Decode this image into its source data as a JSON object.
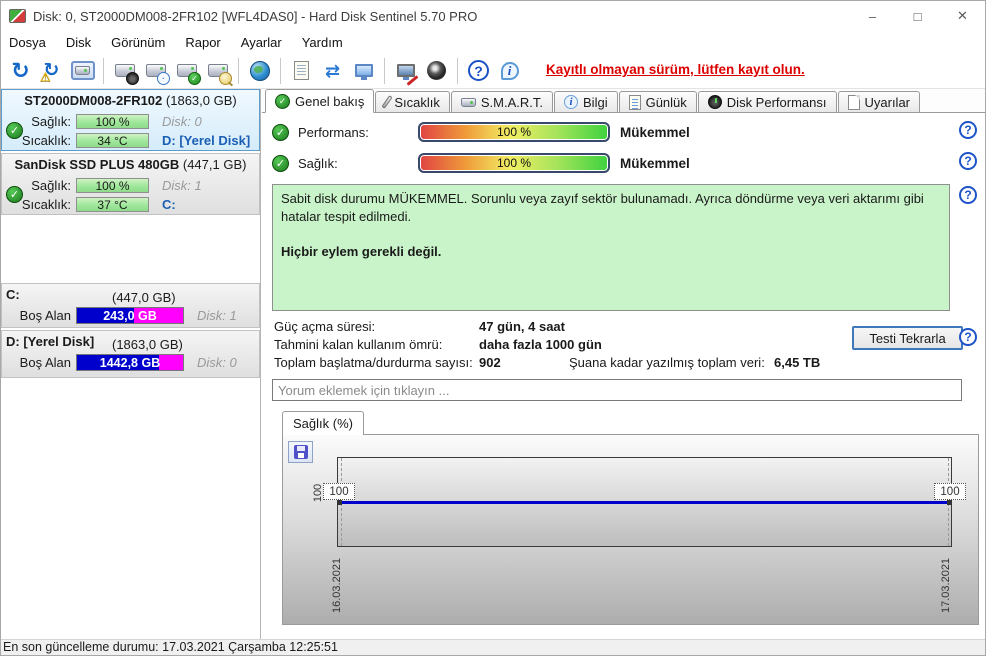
{
  "window": {
    "title": "Disk: 0, ST2000DM008-2FR102 [WFL4DAS0]  -  Hard Disk Sentinel 5.70 PRO",
    "controls": {
      "minimize": "–",
      "maximize": "□",
      "close": "✕"
    }
  },
  "menu": {
    "items": [
      "Dosya",
      "Disk",
      "Görünüm",
      "Rapor",
      "Ayarlar",
      "Yardım"
    ]
  },
  "toolbar": {
    "registration_notice": "Kayıtlı olmayan sürüm, lütfen kayıt olun.",
    "icons": [
      "refresh-icon",
      "refresh-warning-icon",
      "disk-box-icon",
      "disk-gauge-icon",
      "disk-clock-icon",
      "disk-check-icon",
      "disk-search-icon",
      "globe-disk-icon",
      "report-icon",
      "mail-sync-icon",
      "network-computer-icon",
      "remote-tools-icon",
      "sound-icon",
      "help-icon",
      "info-icon"
    ]
  },
  "sidebar": {
    "disks": [
      {
        "name": "ST2000DM008-2FR102",
        "capacity": "(1863,0 GB)",
        "health_label": "Sağlık:",
        "health_value": "100 %",
        "temp_label": "Sıcaklık:",
        "temp_value": "34 °C",
        "disk_no": "Disk: 0",
        "drive": "D: [Yerel Disk]"
      },
      {
        "name": "SanDisk SSD PLUS 480GB",
        "capacity": "(447,1 GB)",
        "health_label": "Sağlık:",
        "health_value": "100 %",
        "temp_label": "Sıcaklık:",
        "temp_value": "37 °C",
        "disk_no": "Disk: 1",
        "drive": "C:"
      }
    ],
    "partitions": [
      {
        "name": "C:",
        "capacity": "(447,0 GB)",
        "free_label": "Boş Alan",
        "free_value": "243,0 GB",
        "free_pct": 54,
        "disk_no": "Disk: 1"
      },
      {
        "name": "D: [Yerel Disk]",
        "capacity": "(1863,0 GB)",
        "free_label": "Boş Alan",
        "free_value": "1442,8 GB",
        "free_pct": 77,
        "disk_no": "Disk: 0"
      }
    ]
  },
  "tabs": [
    {
      "label": "Genel bakış",
      "icon": "check-circle-icon",
      "active": true
    },
    {
      "label": "Sıcaklık",
      "icon": "thermometer-icon"
    },
    {
      "label": "S.M.A.R.T.",
      "icon": "disk-icon"
    },
    {
      "label": "Bilgi",
      "icon": "info-icon"
    },
    {
      "label": "Günlük",
      "icon": "log-icon"
    },
    {
      "label": "Disk Performansı",
      "icon": "gauge-icon"
    },
    {
      "label": "Uyarılar",
      "icon": "alerts-icon"
    }
  ],
  "overview": {
    "performance_label": "Performans:",
    "performance_value": "100 %",
    "performance_rating": "Mükemmel",
    "health_label": "Sağlık:",
    "health_value": "100 %",
    "health_rating": "Mükemmel",
    "status_text": "Sabit disk durumu MÜKEMMEL. Sorunlu veya zayıf sektör bulunamadı. Ayrıca döndürme veya veri aktarımı gibi hatalar tespit edilmedi.",
    "action_text": "Hiçbir eylem gerekli değil.",
    "stats": [
      {
        "label": "Güç açma süresi:",
        "value": "47 gün, 4 saat"
      },
      {
        "label": "Tahmini kalan kullanım ömrü:",
        "value": "daha fazla 1000 gün"
      },
      {
        "label": "Toplam başlatma/durdurma sayısı:",
        "value": "902"
      }
    ],
    "written_label": "Şuana kadar yazılmış toplam veri:",
    "written_value": "6,45 TB",
    "retest_button": "Testi Tekrarla",
    "comment_placeholder": "Yorum eklemek için tıklayın ..."
  },
  "chart_data": {
    "type": "line",
    "title": "Sağlık (%)",
    "x": [
      "16.03.2021",
      "17.03.2021"
    ],
    "values": [
      100,
      100
    ],
    "point_labels": [
      "100",
      "100"
    ],
    "y_tick_label": "100",
    "line_color": "#0000cc",
    "grid": "dashed-vertical-at-endpoints",
    "legend": "none"
  },
  "statusbar": {
    "text": "En son güncelleme durumu: 17.03.2021 Çarşamba 12:25:51"
  },
  "colors": {
    "accent_blue": "#1d54c8",
    "alert_red": "#dd0000",
    "health_green_bar": "#9fe79a",
    "free_space_blue": "#0000cd",
    "free_space_magenta": "#ff00ff",
    "status_box_green": "#c9f4c9"
  }
}
